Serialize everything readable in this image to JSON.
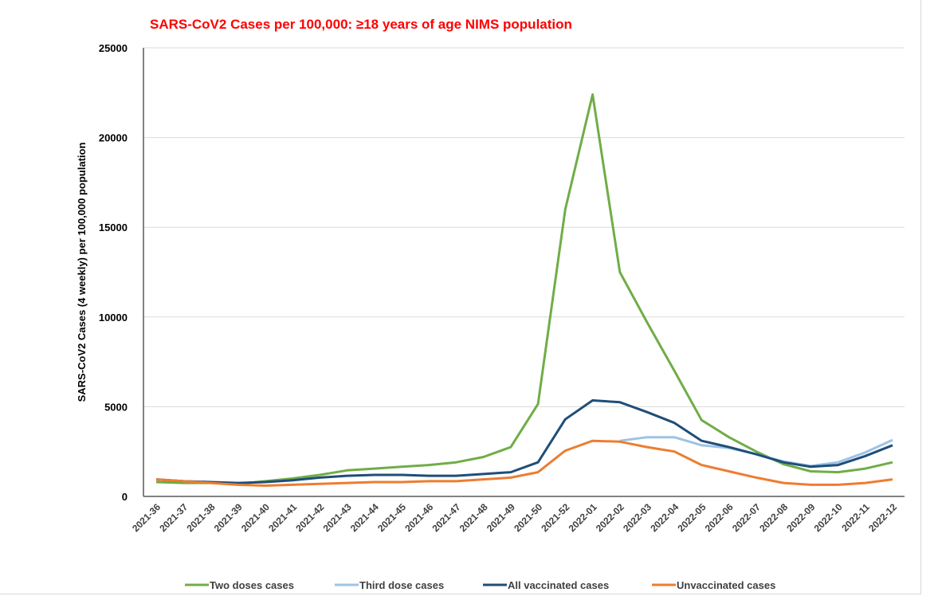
{
  "chart_data": {
    "type": "line",
    "title": "SARS-CoV2 Cases per 100,000: ≥18 years of age NIMS population",
    "xlabel": "",
    "ylabel": "SARS-CoV2 Cases (4 weekly) per 100,000 population",
    "ylim": [
      0,
      25000
    ],
    "yticks": [
      "0",
      "5000",
      "10000",
      "15000",
      "20000",
      "25000"
    ],
    "grid": true,
    "legend": "bottom",
    "categories": [
      "2021-36",
      "2021-37",
      "2021-38",
      "2021-39",
      "2021-40",
      "2021-41",
      "2021-42",
      "2021-43",
      "2021-44",
      "2021-45",
      "2021-46",
      "2021-47",
      "2021-48",
      "2021-49",
      "2021-50",
      "2021-52",
      "2022-01",
      "2022-02",
      "2022-03",
      "2022-04",
      "2022-05",
      "2022-06",
      "2022-07",
      "2022-08",
      "2022-09",
      "2022-10",
      "2022-11",
      "2022-12"
    ],
    "series": [
      {
        "name": "Two doses cases",
        "color": "#70ad47",
        "values": [
          800,
          750,
          750,
          700,
          850,
          1000,
          1200,
          1450,
          1550,
          1650,
          1750,
          1900,
          2200,
          2750,
          5150,
          16000,
          22400,
          12500,
          9700,
          7000,
          4250,
          3300,
          2500,
          1800,
          1400,
          1350,
          1550,
          1900
        ]
      },
      {
        "name": "Third dose cases",
        "color": "#9dc3e6",
        "values": [
          null,
          null,
          null,
          null,
          null,
          null,
          null,
          null,
          null,
          null,
          null,
          null,
          null,
          null,
          null,
          null,
          null,
          3100,
          3300,
          3300,
          2850,
          2700,
          2350,
          1950,
          1700,
          1900,
          2450,
          3150
        ]
      },
      {
        "name": "All vaccinated cases",
        "color": "#1f4e79",
        "values": [
          950,
          850,
          800,
          750,
          800,
          900,
          1050,
          1150,
          1200,
          1200,
          1150,
          1150,
          1250,
          1350,
          1900,
          4300,
          5350,
          5250,
          4700,
          4100,
          3100,
          2750,
          2350,
          1900,
          1650,
          1750,
          2250,
          2850
        ]
      },
      {
        "name": "Unvaccinated cases",
        "color": "#ed7d31",
        "values": [
          950,
          850,
          750,
          650,
          600,
          650,
          700,
          750,
          800,
          800,
          850,
          850,
          950,
          1050,
          1350,
          2550,
          3100,
          3050,
          2750,
          2500,
          1750,
          1400,
          1050,
          750,
          650,
          650,
          750,
          950
        ]
      }
    ]
  }
}
